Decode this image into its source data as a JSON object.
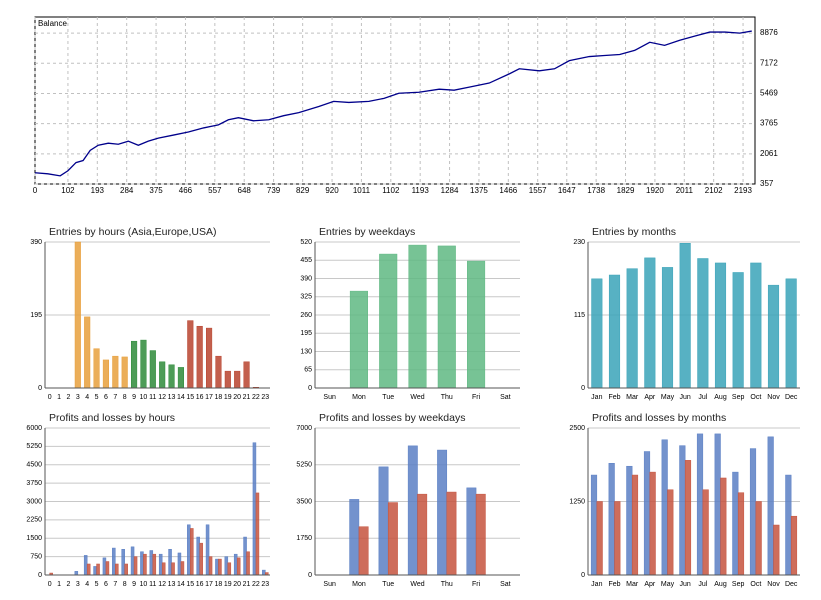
{
  "chart_data": [
    {
      "type": "line",
      "title": "Balance",
      "color": "#00008b",
      "x": [
        0,
        40,
        78,
        102,
        127,
        149,
        171,
        196,
        227,
        258,
        289,
        320,
        351,
        382,
        429,
        475,
        522,
        568,
        599,
        630,
        677,
        724,
        770,
        817,
        879,
        925,
        972,
        1034,
        1081,
        1127,
        1189,
        1252,
        1298,
        1345,
        1407,
        1469,
        1500,
        1562,
        1609,
        1655,
        1717,
        1764,
        1811,
        1857,
        1904,
        1950,
        1997,
        2043,
        2090,
        2137,
        2183,
        2220
      ],
      "values": [
        990,
        933,
        818,
        1105,
        1566,
        1681,
        2257,
        2545,
        2660,
        2602,
        2775,
        2545,
        2775,
        2948,
        3120,
        3293,
        3523,
        3696,
        3984,
        4099,
        3926,
        3984,
        4214,
        4387,
        4732,
        5020,
        4963,
        5020,
        5193,
        5481,
        5538,
        5711,
        5654,
        5826,
        6056,
        6575,
        6862,
        6747,
        6862,
        7323,
        7553,
        7611,
        7668,
        7898,
        8358,
        8186,
        8474,
        8704,
        8935,
        8935,
        8877,
        8992
      ],
      "xlim": [
        0,
        2230
      ],
      "ylim": [
        357,
        9786
      ],
      "xticks": [
        0,
        102,
        193,
        284,
        375,
        466,
        557,
        648,
        739,
        829,
        920,
        1011,
        1102,
        1193,
        1284,
        1375,
        1466,
        1557,
        1647,
        1738,
        1829,
        1920,
        2011,
        2102,
        2193
      ],
      "yticks": [
        357,
        2061,
        3765,
        5469,
        7172,
        8876
      ],
      "grid": true
    },
    {
      "type": "bar",
      "title": "Entries by hours (Asia,Europe,USA)",
      "categories": [
        "0",
        "1",
        "2",
        "3",
        "4",
        "5",
        "6",
        "7",
        "8",
        "9",
        "10",
        "11",
        "12",
        "13",
        "14",
        "15",
        "16",
        "17",
        "18",
        "19",
        "20",
        "21",
        "22",
        "23"
      ],
      "values": [
        0,
        0,
        0,
        390,
        190,
        105,
        75,
        85,
        83,
        125,
        128,
        100,
        70,
        62,
        55,
        180,
        165,
        160,
        85,
        45,
        45,
        70,
        2,
        0
      ],
      "colors": [
        "#e8a03c",
        "#e8a03c",
        "#e8a03c",
        "#e8a03c",
        "#e8a03c",
        "#e8a03c",
        "#e8a03c",
        "#e8a03c",
        "#e8a03c",
        "#2e8b3a",
        "#2e8b3a",
        "#2e8b3a",
        "#2e8b3a",
        "#2e8b3a",
        "#2e8b3a",
        "#b8432e",
        "#b8432e",
        "#b8432e",
        "#b8432e",
        "#b8432e",
        "#b8432e",
        "#b8432e",
        "#b8432e",
        "#b8432e"
      ],
      "ylim": [
        0,
        390
      ],
      "yticks": [
        0,
        195,
        390
      ],
      "grid": true
    },
    {
      "type": "bar",
      "title": "Entries by weekdays",
      "categories": [
        "Sun",
        "Mon",
        "Tue",
        "Wed",
        "Thu",
        "Fri",
        "Sat"
      ],
      "values": [
        0,
        345,
        477,
        509,
        506,
        452,
        0
      ],
      "color": "#5fb882",
      "ylim": [
        0,
        520
      ],
      "yticks": [
        0,
        65,
        130,
        195,
        260,
        325,
        390,
        455,
        520
      ],
      "grid": true
    },
    {
      "type": "bar",
      "title": "Entries by months",
      "categories": [
        "Jan",
        "Feb",
        "Mar",
        "Apr",
        "May",
        "Jun",
        "Jul",
        "Aug",
        "Sep",
        "Oct",
        "Nov",
        "Dec"
      ],
      "values": [
        172,
        178,
        188,
        205,
        190,
        228,
        204,
        197,
        182,
        197,
        162,
        172
      ],
      "color": "#3aa3b8",
      "ylim": [
        0,
        230
      ],
      "yticks": [
        0,
        115,
        230
      ],
      "grid": true
    },
    {
      "type": "bar",
      "title": "Profits and losses by hours",
      "categories": [
        "0",
        "1",
        "2",
        "3",
        "4",
        "5",
        "6",
        "7",
        "8",
        "9",
        "10",
        "11",
        "12",
        "13",
        "14",
        "15",
        "16",
        "17",
        "18",
        "19",
        "20",
        "21",
        "22",
        "23"
      ],
      "series": [
        {
          "color": "#5a7fc4",
          "values": [
            0,
            0,
            0,
            150,
            800,
            350,
            700,
            1100,
            1050,
            1150,
            950,
            1000,
            850,
            1050,
            900,
            2050,
            1550,
            2050,
            650,
            750,
            850,
            1550,
            5400,
            200
          ]
        },
        {
          "color": "#c5533e",
          "values": [
            80,
            0,
            0,
            0,
            450,
            450,
            550,
            450,
            450,
            750,
            850,
            850,
            500,
            500,
            550,
            1900,
            1300,
            750,
            650,
            500,
            700,
            950,
            3350,
            100
          ]
        }
      ],
      "ylim": [
        0,
        6000
      ],
      "yticks": [
        0,
        750,
        1500,
        2250,
        3000,
        3750,
        4500,
        5250,
        6000
      ],
      "grid": true
    },
    {
      "type": "bar",
      "title": "Profits and losses by weekdays",
      "categories": [
        "Sun",
        "Mon",
        "Tue",
        "Wed",
        "Thu",
        "Fri",
        "Sat"
      ],
      "series": [
        {
          "color": "#5a7fc4",
          "values": [
            0,
            3600,
            5150,
            6150,
            5950,
            4150,
            0
          ]
        },
        {
          "color": "#c5533e",
          "values": [
            0,
            2300,
            3450,
            3850,
            3950,
            3850,
            0
          ]
        }
      ],
      "ylim": [
        0,
        7000
      ],
      "yticks": [
        0,
        1750,
        3500,
        5250,
        7000
      ],
      "grid": true
    },
    {
      "type": "bar",
      "title": "Profits and losses by months",
      "categories": [
        "Jan",
        "Feb",
        "Mar",
        "Apr",
        "May",
        "Jun",
        "Jul",
        "Aug",
        "Sep",
        "Oct",
        "Nov",
        "Dec"
      ],
      "series": [
        {
          "color": "#5a7fc4",
          "values": [
            1700,
            1900,
            1850,
            2100,
            2300,
            2200,
            2400,
            2400,
            1750,
            2150,
            2350,
            1700
          ]
        },
        {
          "color": "#c5533e",
          "values": [
            1250,
            1250,
            1700,
            1750,
            1450,
            1950,
            1450,
            1650,
            1400,
            1250,
            850,
            1000
          ]
        }
      ],
      "ylim": [
        0,
        2500
      ],
      "yticks": [
        0,
        1250,
        2500
      ],
      "grid": true
    }
  ]
}
